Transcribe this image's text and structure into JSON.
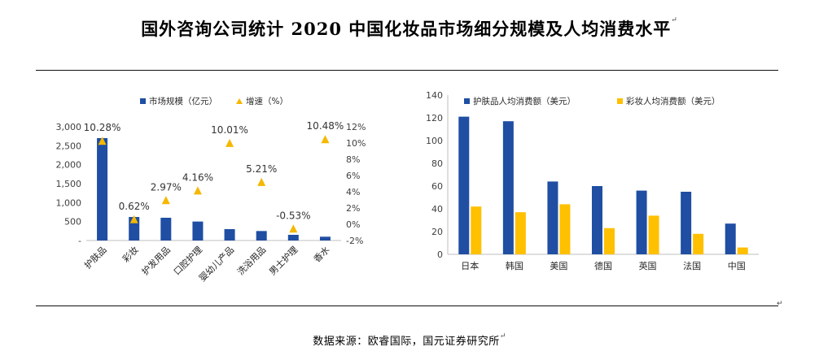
{
  "title": "国外咨询公司统计 2020 中国化妆品市场细分规模及人均消费水平",
  "paragraph_mark": "↵",
  "source": "数据来源：欧睿国际，国元证券研究所",
  "colors": {
    "blue": "#1f4ea3",
    "gold": "#ffc000",
    "triangle": "#f5b800"
  },
  "chart_data": [
    {
      "type": "bar+scatter",
      "categories": [
        "护肤品",
        "彩妆",
        "护发用品",
        "口腔护理",
        "婴幼儿产品",
        "洗浴用品",
        "男士护理",
        "香水"
      ],
      "series": [
        {
          "name": "市场规模（亿元）",
          "kind": "bar",
          "axis": "left",
          "values": [
            2700,
            620,
            600,
            500,
            300,
            250,
            150,
            100
          ]
        },
        {
          "name": "增速（%）",
          "kind": "marker-triangle",
          "axis": "right",
          "values": [
            10.28,
            0.62,
            2.97,
            4.16,
            10.01,
            5.21,
            -0.53,
            10.48
          ]
        }
      ],
      "data_labels": [
        "10.28%",
        "0.62%",
        "2.97%",
        "4.16%",
        "10.01%",
        "5.21%",
        "-0.53%",
        "10.48%"
      ],
      "left_axis": {
        "range": [
          0,
          3000
        ],
        "ticks": [
          0,
          500,
          1000,
          1500,
          2000,
          2500,
          3000
        ],
        "tick_labels": [
          "-",
          "500",
          "1,000",
          "1,500",
          "2,000",
          "2,500",
          "3,000"
        ]
      },
      "right_axis": {
        "range": [
          -2,
          12
        ],
        "ticks": [
          -2,
          0,
          2,
          4,
          6,
          8,
          10,
          12
        ],
        "tick_labels": [
          "-2%",
          "0%",
          "2%",
          "4%",
          "6%",
          "8%",
          "10%",
          "12%"
        ]
      },
      "legend": [
        "市场规模（亿元）",
        "增速（%）"
      ]
    },
    {
      "type": "bar",
      "categories": [
        "日本",
        "韩国",
        "美国",
        "德国",
        "英国",
        "法国",
        "中国"
      ],
      "series": [
        {
          "name": "护肤品人均消费额（美元）",
          "values": [
            121,
            117,
            64,
            60,
            56,
            55,
            27
          ]
        },
        {
          "name": "彩妆人均消费额（美元）",
          "values": [
            42,
            37,
            44,
            23,
            34,
            18,
            6
          ]
        }
      ],
      "y_axis": {
        "range": [
          0,
          140
        ],
        "ticks": [
          0,
          20,
          40,
          60,
          80,
          100,
          120,
          140
        ],
        "tick_labels": [
          "0",
          "20",
          "40",
          "60",
          "80",
          "100",
          "120",
          "140"
        ]
      },
      "legend": [
        "护肤品人均消费额（美元）",
        "彩妆人均消费额（美元）"
      ]
    }
  ]
}
